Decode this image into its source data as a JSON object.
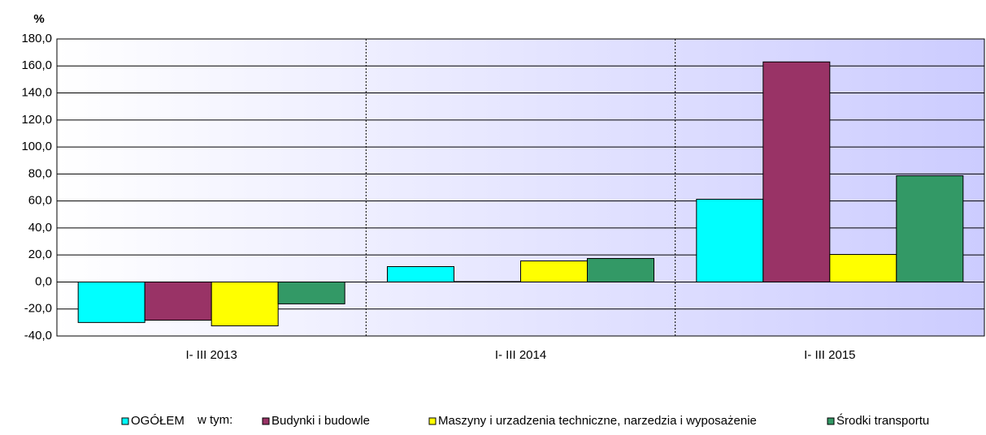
{
  "chart_data": {
    "type": "bar",
    "ylabel": "%",
    "categories": [
      "I- III 2013",
      "I- III 2014",
      "I- III 2015"
    ],
    "series": [
      {
        "name": "OGÓŁEM",
        "color": "#00ffff",
        "values": [
          -30.0,
          11.4,
          61.3
        ]
      },
      {
        "name": "Budynki i budowle",
        "color": "#993366",
        "values": [
          -28.3,
          0.3,
          163.0
        ]
      },
      {
        "name": "Maszyny i urzadzenia techniczne, narzedzia i wyposażenie",
        "color": "#ffff00",
        "values": [
          -32.5,
          15.6,
          20.4
        ]
      },
      {
        "name": "Środki transportu",
        "color": "#339966",
        "values": [
          -16.2,
          17.4,
          78.7
        ]
      }
    ],
    "legend_note": "w tym:",
    "ylim": [
      -40,
      180
    ],
    "yticks": [
      {
        "value": -40,
        "label": "-40,0"
      },
      {
        "value": -20,
        "label": "-20,0"
      },
      {
        "value": 0,
        "label": "0,0"
      },
      {
        "value": 20,
        "label": "20,0"
      },
      {
        "value": 40,
        "label": "40,0"
      },
      {
        "value": 60,
        "label": "60,0"
      },
      {
        "value": 80,
        "label": "80,0"
      },
      {
        "value": 100,
        "label": "100,0"
      },
      {
        "value": 120,
        "label": "120,0"
      },
      {
        "value": 140,
        "label": "140,0"
      },
      {
        "value": 160,
        "label": "160,0"
      },
      {
        "value": 180,
        "label": "180,0"
      }
    ],
    "grid": true,
    "legend": "bottom"
  }
}
